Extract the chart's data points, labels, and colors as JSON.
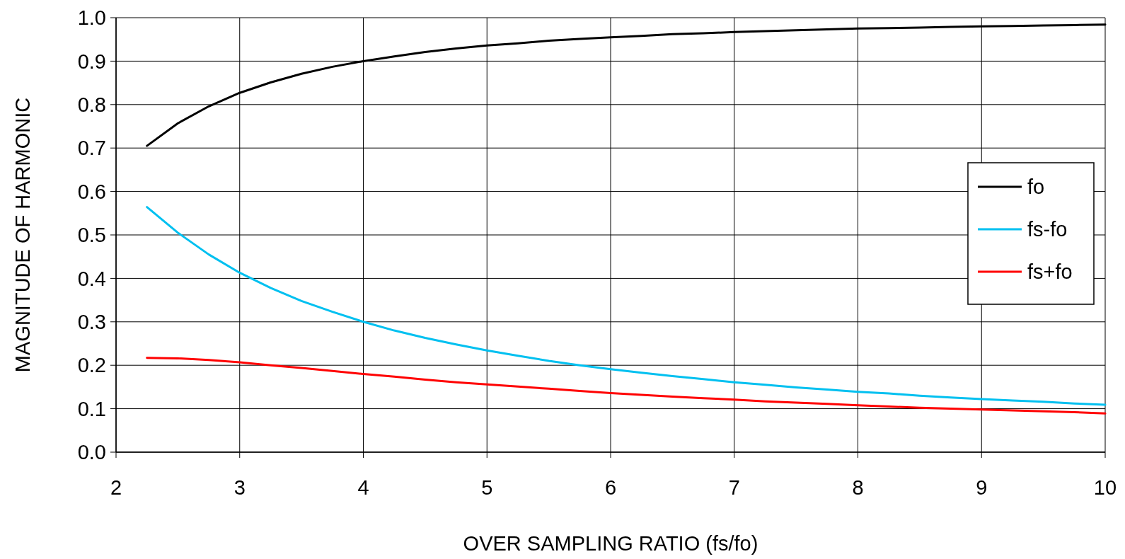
{
  "chart_data": {
    "type": "line",
    "xlabel": "OVER SAMPLING RATIO (fs/fo)",
    "ylabel": "MAGNITUDE OF HARMONIC",
    "x": [
      2.25,
      2.5,
      2.75,
      3,
      3.25,
      3.5,
      3.75,
      4,
      4.25,
      4.5,
      4.75,
      5,
      5.25,
      5.5,
      5.75,
      6,
      6.25,
      6.5,
      6.75,
      7,
      7.25,
      7.5,
      7.75,
      8,
      8.25,
      8.5,
      8.75,
      9,
      9.25,
      9.5,
      9.75,
      10
    ],
    "series": [
      {
        "name": "fo",
        "color": "#000000",
        "values": [
          0.705,
          0.757,
          0.796,
          0.827,
          0.851,
          0.871,
          0.887,
          0.9,
          0.911,
          0.921,
          0.929,
          0.936,
          0.941,
          0.947,
          0.951,
          0.955,
          0.958,
          0.962,
          0.964,
          0.967,
          0.969,
          0.971,
          0.973,
          0.975,
          0.976,
          0.977,
          0.979,
          0.98,
          0.981,
          0.982,
          0.983,
          0.984
        ]
      },
      {
        "name": "fs-fo",
        "color": "#00c0f0",
        "values": [
          0.564,
          0.505,
          0.455,
          0.413,
          0.378,
          0.348,
          0.323,
          0.3,
          0.28,
          0.263,
          0.248,
          0.234,
          0.222,
          0.21,
          0.2,
          0.191,
          0.183,
          0.175,
          0.168,
          0.161,
          0.155,
          0.149,
          0.144,
          0.139,
          0.135,
          0.13,
          0.126,
          0.122,
          0.119,
          0.116,
          0.112,
          0.109
        ]
      },
      {
        "name": "fs+fo",
        "color": "#ff0000",
        "values": [
          0.217,
          0.216,
          0.212,
          0.207,
          0.2,
          0.194,
          0.187,
          0.18,
          0.174,
          0.167,
          0.161,
          0.156,
          0.151,
          0.146,
          0.141,
          0.136,
          0.132,
          0.128,
          0.124,
          0.121,
          0.117,
          0.114,
          0.111,
          0.108,
          0.105,
          0.102,
          0.1,
          0.098,
          0.096,
          0.094,
          0.092,
          0.089
        ]
      }
    ],
    "xlim": [
      2,
      10
    ],
    "xticks": [
      2,
      3,
      4,
      5,
      6,
      7,
      8,
      9,
      10
    ],
    "ylim": [
      0,
      1
    ],
    "yticks": [
      {
        "value": 0,
        "label": "0.0"
      },
      {
        "value": 0.1,
        "label": "0.1"
      },
      {
        "value": 0.2,
        "label": "0.2"
      },
      {
        "value": 0.3,
        "label": "0.3"
      },
      {
        "value": 0.4,
        "label": "0.4"
      },
      {
        "value": 0.5,
        "label": "0.5"
      },
      {
        "value": 0.6,
        "label": "0.6"
      },
      {
        "value": 0.7,
        "label": "0.7"
      },
      {
        "value": 0.8,
        "label": "0.8"
      },
      {
        "value": 0.9,
        "label": "0.9"
      },
      {
        "value": 1,
        "label": "1.0"
      }
    ],
    "grid": true,
    "legend": "right",
    "marker": "none",
    "line_style": "solid"
  }
}
